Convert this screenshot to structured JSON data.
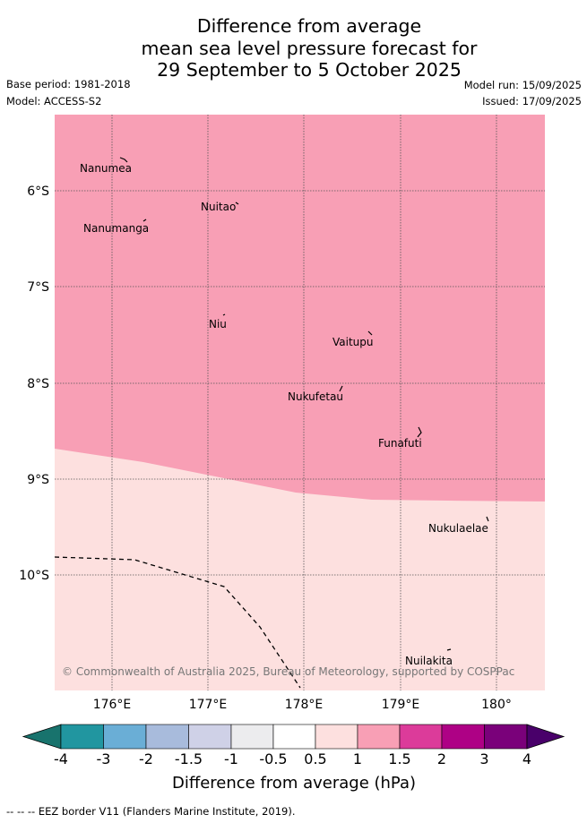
{
  "title": {
    "line1": "Difference from average",
    "line2": "mean sea level pressure forecast for",
    "line3": "29 September to 5 October 2025"
  },
  "meta": {
    "base_period": "Base period: 1981-2018",
    "model": "Model: ACCESS-S2",
    "model_run": "Model run: 15/09/2025",
    "issued": "Issued: 17/09/2025"
  },
  "map": {
    "lon_labels": [
      "176°E",
      "177°E",
      "178°E",
      "179°E",
      "180°"
    ],
    "lat_labels": [
      "6°S",
      "7°S",
      "8°S",
      "9°S",
      "10°S"
    ],
    "places": [
      "Nanumea",
      "Nuitao",
      "Nanumanga",
      "Niu",
      "Vaitupu",
      "Nukufetau",
      "Funafuti",
      "Nukulaelae",
      "Nuilakita"
    ],
    "credit": "© Commonwealth of Australia 2025, Bureau of Meteorology, supported by COSPPac",
    "region_colors": {
      "upper": "#f89fb5",
      "lower": "#fde0df"
    }
  },
  "colorbar": {
    "labels": [
      "-4",
      "-3",
      "-2",
      "-1.5",
      "-1",
      "-0.5",
      "0.5",
      "1",
      "1.5",
      "2",
      "3",
      "4"
    ],
    "colors": [
      "#18736d",
      "#2196a0",
      "#6aaed6",
      "#a8bbdc",
      "#cfd1e7",
      "#ececee",
      "#ffffff",
      "#fde0df",
      "#f89fb5",
      "#dc3b9a",
      "#ae0185",
      "#7a017a",
      "#49006a"
    ],
    "title": "Difference from average (hPa)"
  },
  "footer": {
    "legend": "-- -- -- EEZ border V11 (Flanders Marine Institute, 2019)."
  }
}
